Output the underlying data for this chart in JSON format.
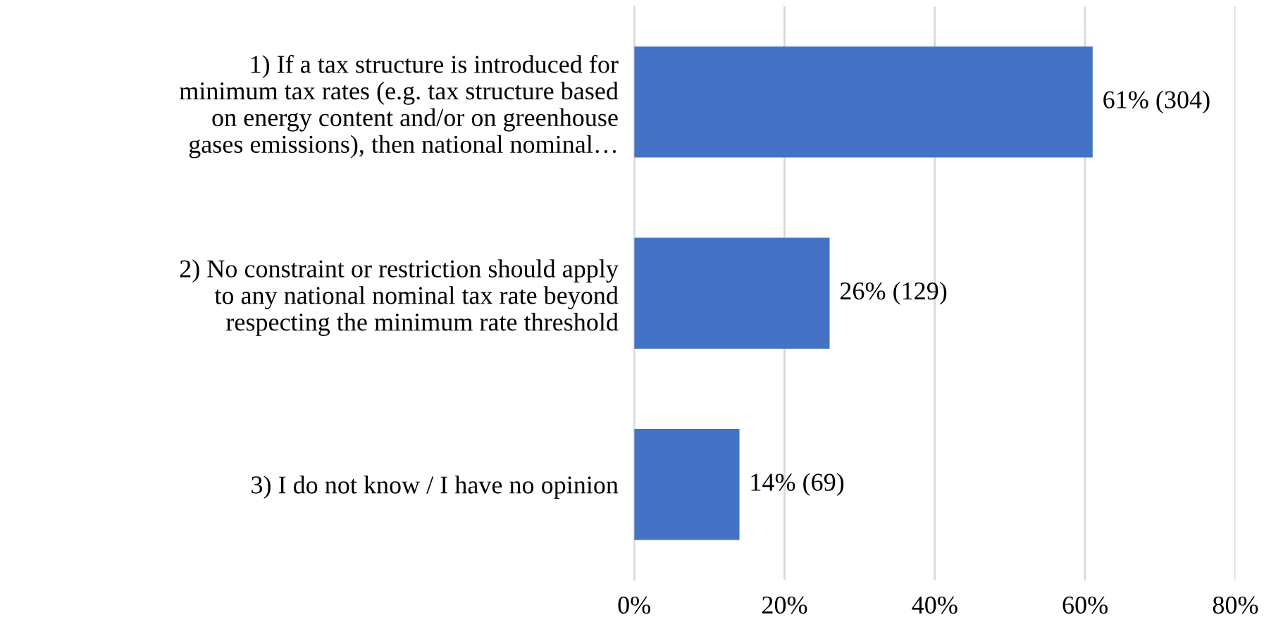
{
  "chart_data": {
    "type": "bar",
    "orientation": "horizontal",
    "categories": [
      "1) If a tax structure is introduced for\nminimum tax rates (e.g. tax structure based\non energy content and/or on greenhouse\ngases emissions), then national nominal…",
      "2) No constraint or restriction should apply\nto any national nominal tax rate beyond\nrespecting the minimum rate threshold",
      "3) I do not know / I have no opinion"
    ],
    "values": [
      61,
      26,
      14
    ],
    "value_labels": [
      "61% (304)",
      "26% (129)",
      "14% (69)"
    ],
    "color": "#4472c4",
    "xlim": [
      0,
      80
    ],
    "xticks": [
      {
        "value": 0,
        "label": "0%"
      },
      {
        "value": 20,
        "label": "20%"
      },
      {
        "value": 40,
        "label": "40%"
      },
      {
        "value": 60,
        "label": "60%"
      },
      {
        "value": 80,
        "label": "80%"
      }
    ],
    "grid": "x",
    "legend": false
  }
}
